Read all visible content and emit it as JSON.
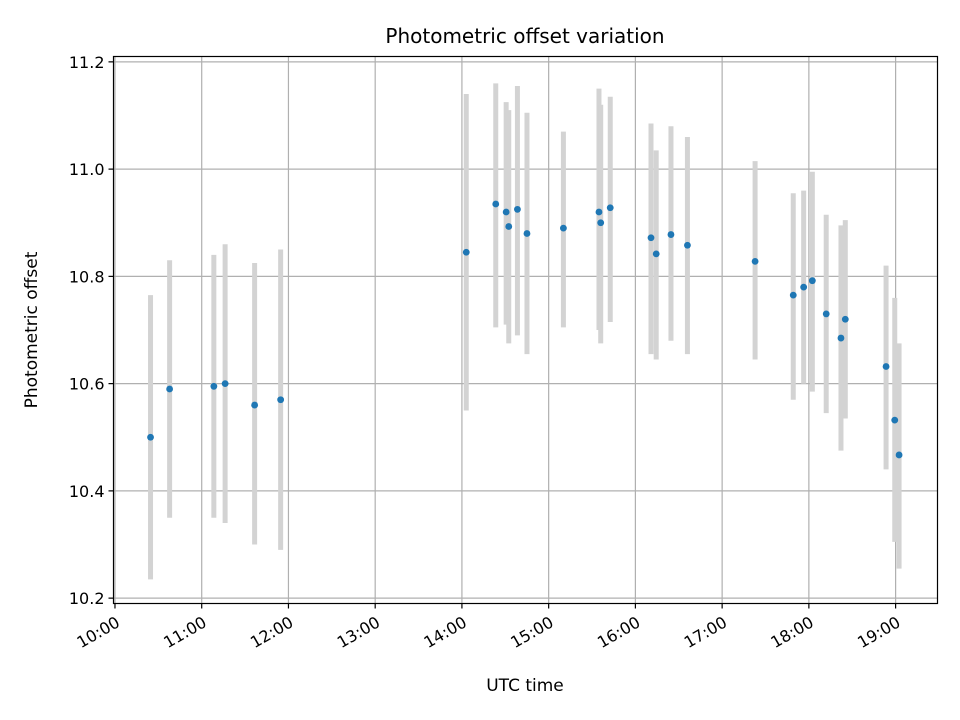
{
  "chart_data": {
    "type": "scatter",
    "title": "Photometric offset variation",
    "xlabel": "UTC time",
    "ylabel": "Photometric offset",
    "x_unit": "hours (UTC)",
    "xlim": [
      9.983,
      19.483
    ],
    "ylim": [
      10.19,
      11.21
    ],
    "grid": true,
    "xticks": [
      {
        "value": 10,
        "label": "10:00"
      },
      {
        "value": 11,
        "label": "11:00"
      },
      {
        "value": 12,
        "label": "12:00"
      },
      {
        "value": 13,
        "label": "13:00"
      },
      {
        "value": 14,
        "label": "14:00"
      },
      {
        "value": 15,
        "label": "15:00"
      },
      {
        "value": 16,
        "label": "16:00"
      },
      {
        "value": 17,
        "label": "17:00"
      },
      {
        "value": 18,
        "label": "18:00"
      },
      {
        "value": 19,
        "label": "19:00"
      }
    ],
    "yticks": [
      {
        "value": 10.2,
        "label": "10.2"
      },
      {
        "value": 10.4,
        "label": "10.4"
      },
      {
        "value": 10.6,
        "label": "10.6"
      },
      {
        "value": 10.8,
        "label": "10.8"
      },
      {
        "value": 11.0,
        "label": "11.0"
      },
      {
        "value": 11.2,
        "label": "11.2"
      }
    ],
    "colors": {
      "point": "#1f77b4",
      "errorbar": "#d3d3d3",
      "grid": "#b0b0b0"
    },
    "points": [
      {
        "x": 10.41,
        "y": 10.5,
        "lo": 10.235,
        "hi": 10.765
      },
      {
        "x": 10.63,
        "y": 10.59,
        "lo": 10.35,
        "hi": 10.83
      },
      {
        "x": 11.14,
        "y": 10.595,
        "lo": 10.35,
        "hi": 10.84
      },
      {
        "x": 11.27,
        "y": 10.6,
        "lo": 10.34,
        "hi": 10.86
      },
      {
        "x": 11.61,
        "y": 10.56,
        "lo": 10.3,
        "hi": 10.825
      },
      {
        "x": 11.91,
        "y": 10.57,
        "lo": 10.29,
        "hi": 10.85
      },
      {
        "x": 14.05,
        "y": 10.845,
        "lo": 10.55,
        "hi": 11.14
      },
      {
        "x": 14.39,
        "y": 10.935,
        "lo": 10.705,
        "hi": 11.16
      },
      {
        "x": 14.51,
        "y": 10.92,
        "lo": 10.71,
        "hi": 11.125
      },
      {
        "x": 14.54,
        "y": 10.893,
        "lo": 10.675,
        "hi": 11.11
      },
      {
        "x": 14.64,
        "y": 10.925,
        "lo": 10.69,
        "hi": 11.155
      },
      {
        "x": 14.75,
        "y": 10.88,
        "lo": 10.655,
        "hi": 11.105
      },
      {
        "x": 15.17,
        "y": 10.89,
        "lo": 10.705,
        "hi": 11.07
      },
      {
        "x": 15.58,
        "y": 10.92,
        "lo": 10.7,
        "hi": 11.15
      },
      {
        "x": 15.6,
        "y": 10.9,
        "lo": 10.675,
        "hi": 11.12
      },
      {
        "x": 15.71,
        "y": 10.928,
        "lo": 10.715,
        "hi": 11.135
      },
      {
        "x": 16.18,
        "y": 10.872,
        "lo": 10.655,
        "hi": 11.085
      },
      {
        "x": 16.24,
        "y": 10.842,
        "lo": 10.645,
        "hi": 11.035
      },
      {
        "x": 16.41,
        "y": 10.878,
        "lo": 10.68,
        "hi": 11.08
      },
      {
        "x": 16.6,
        "y": 10.858,
        "lo": 10.655,
        "hi": 11.06
      },
      {
        "x": 17.38,
        "y": 10.828,
        "lo": 10.645,
        "hi": 11.015
      },
      {
        "x": 17.82,
        "y": 10.765,
        "lo": 10.57,
        "hi": 10.955
      },
      {
        "x": 17.94,
        "y": 10.78,
        "lo": 10.6,
        "hi": 10.96
      },
      {
        "x": 18.04,
        "y": 10.792,
        "lo": 10.585,
        "hi": 10.995
      },
      {
        "x": 18.2,
        "y": 10.73,
        "lo": 10.545,
        "hi": 10.915
      },
      {
        "x": 18.37,
        "y": 10.685,
        "lo": 10.475,
        "hi": 10.895
      },
      {
        "x": 18.42,
        "y": 10.72,
        "lo": 10.535,
        "hi": 10.905
      },
      {
        "x": 18.89,
        "y": 10.632,
        "lo": 10.44,
        "hi": 10.82
      },
      {
        "x": 18.99,
        "y": 10.532,
        "lo": 10.305,
        "hi": 10.76
      },
      {
        "x": 19.04,
        "y": 10.467,
        "lo": 10.255,
        "hi": 10.675
      }
    ]
  }
}
